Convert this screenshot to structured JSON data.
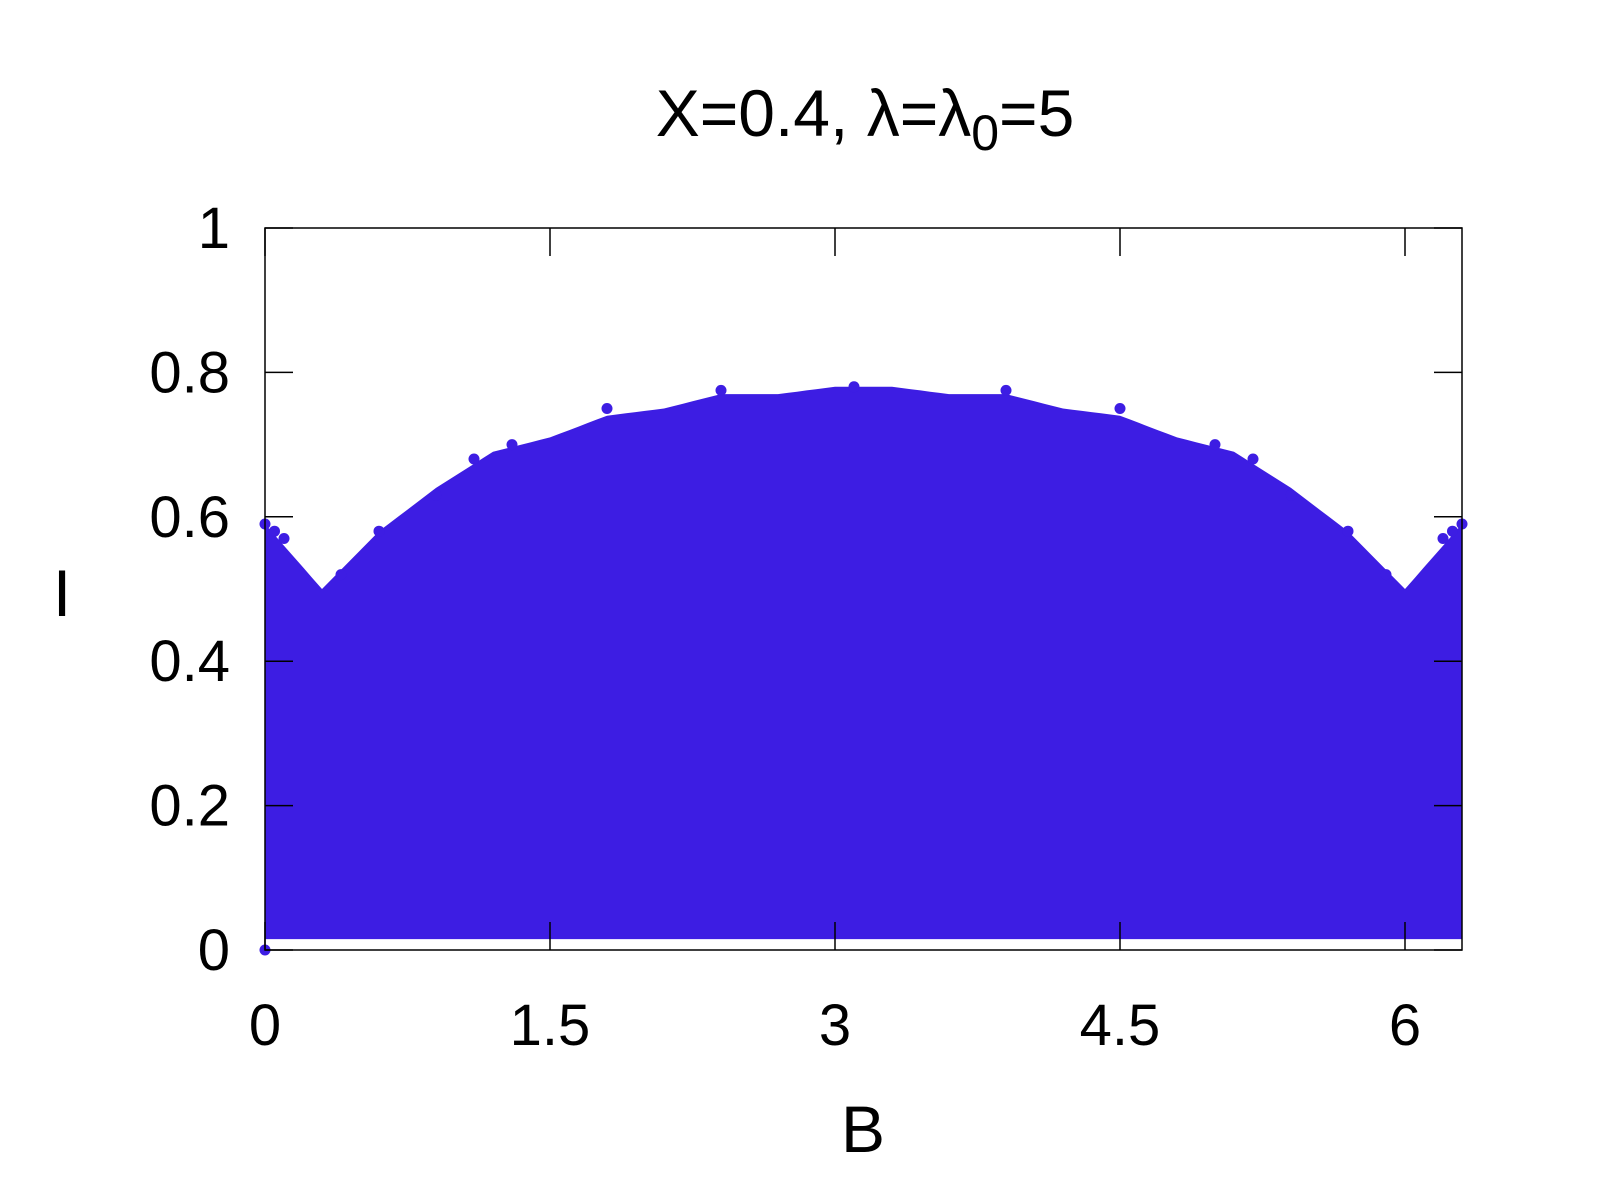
{
  "chart_data": {
    "type": "scatter",
    "title_main": "X=0.4, λ=λ",
    "title_sub": "0",
    "title_tail": "=5",
    "xlabel": "B",
    "ylabel": "I",
    "xlim": [
      0,
      6.3
    ],
    "ylim": [
      0,
      1
    ],
    "x_ticks": [
      {
        "value": 0,
        "label": "0"
      },
      {
        "value": 1.5,
        "label": "1.5"
      },
      {
        "value": 3,
        "label": "3"
      },
      {
        "value": 4.5,
        "label": "4.5"
      },
      {
        "value": 6,
        "label": "6"
      }
    ],
    "y_ticks": [
      {
        "value": 0,
        "label": "0"
      },
      {
        "value": 0.2,
        "label": "0.2"
      },
      {
        "value": 0.4,
        "label": "0.4"
      },
      {
        "value": 0.6,
        "label": "0.6"
      },
      {
        "value": 0.8,
        "label": "0.8"
      },
      {
        "value": 1,
        "label": "1"
      }
    ],
    "grid": false,
    "series_color": "#3d1de3",
    "envelope": {
      "B": [
        0.0,
        0.3,
        0.6,
        0.9,
        1.2,
        1.5,
        1.8,
        2.1,
        2.4,
        2.7,
        3.0,
        3.15,
        3.3,
        3.6,
        3.9,
        4.2,
        4.5,
        4.8,
        5.1,
        5.4,
        5.7,
        6.0,
        6.3
      ],
      "max": [
        0.59,
        0.5,
        0.58,
        0.64,
        0.69,
        0.71,
        0.74,
        0.75,
        0.77,
        0.77,
        0.78,
        0.78,
        0.78,
        0.77,
        0.77,
        0.75,
        0.74,
        0.71,
        0.69,
        0.64,
        0.58,
        0.5,
        0.59
      ]
    },
    "boundary_points": [
      {
        "x": 0.0,
        "y": 0.59
      },
      {
        "x": 0.05,
        "y": 0.58
      },
      {
        "x": 0.1,
        "y": 0.57
      },
      {
        "x": 0.4,
        "y": 0.52
      },
      {
        "x": 0.6,
        "y": 0.58
      },
      {
        "x": 0.9,
        "y": 0.63
      },
      {
        "x": 1.1,
        "y": 0.68
      },
      {
        "x": 1.3,
        "y": 0.7
      },
      {
        "x": 1.8,
        "y": 0.75
      },
      {
        "x": 2.4,
        "y": 0.775
      },
      {
        "x": 3.1,
        "y": 0.78
      },
      {
        "x": 3.9,
        "y": 0.775
      },
      {
        "x": 4.5,
        "y": 0.75
      },
      {
        "x": 5.0,
        "y": 0.7
      },
      {
        "x": 5.2,
        "y": 0.68
      },
      {
        "x": 5.4,
        "y": 0.63
      },
      {
        "x": 5.7,
        "y": 0.58
      },
      {
        "x": 5.9,
        "y": 0.52
      },
      {
        "x": 6.2,
        "y": 0.57
      },
      {
        "x": 6.25,
        "y": 0.58
      },
      {
        "x": 6.3,
        "y": 0.59
      },
      {
        "x": 0.0,
        "y": 0.0
      }
    ]
  }
}
